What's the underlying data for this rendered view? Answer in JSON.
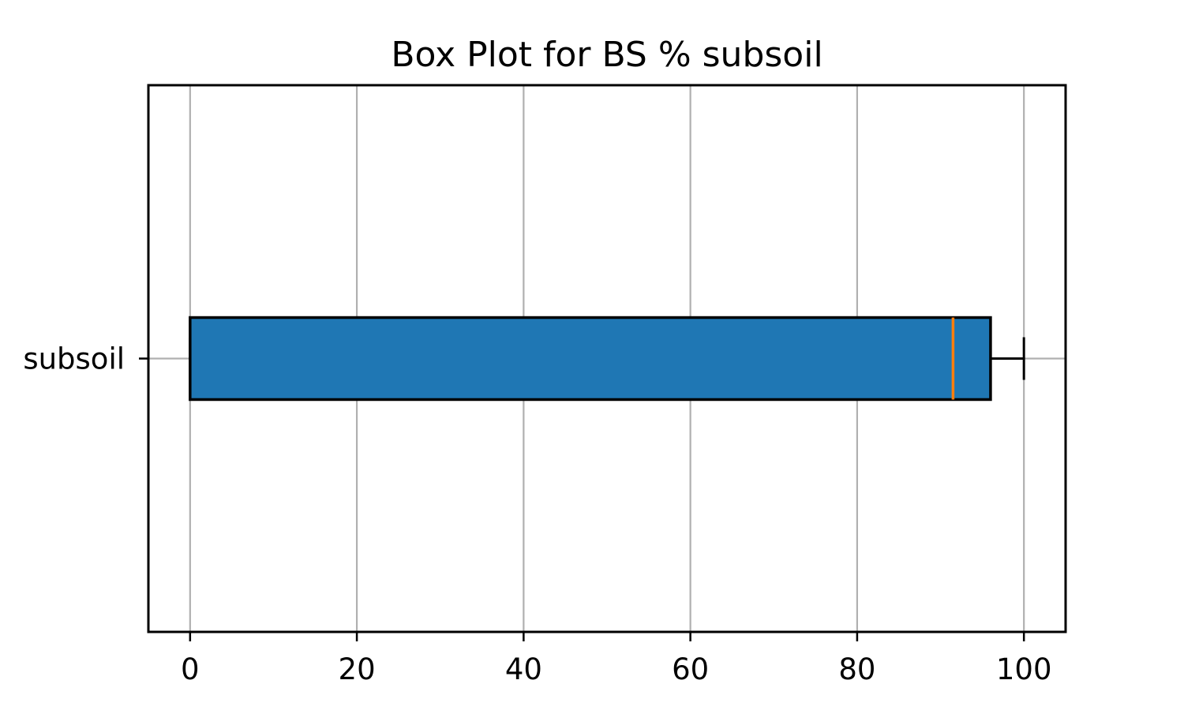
{
  "chart_data": {
    "type": "box",
    "orientation": "horizontal",
    "title": "Box Plot for BS % subsoil",
    "xlabel": "",
    "ylabel": "",
    "xlim": [
      -5,
      105
    ],
    "x_ticks": [
      0,
      20,
      40,
      60,
      80,
      100
    ],
    "x_tick_labels": [
      "0",
      "20",
      "40",
      "60",
      "80",
      "100"
    ],
    "grid": true,
    "series": [
      {
        "name": "subsoil",
        "whisker_low": 0,
        "q1": 0,
        "median": 91.5,
        "q3": 96,
        "whisker_high": 100
      }
    ],
    "colors": {
      "box_fill": "#1f77b4",
      "median": "#ff7f0e",
      "grid": "#b0b0b0",
      "axis": "#000000"
    }
  }
}
